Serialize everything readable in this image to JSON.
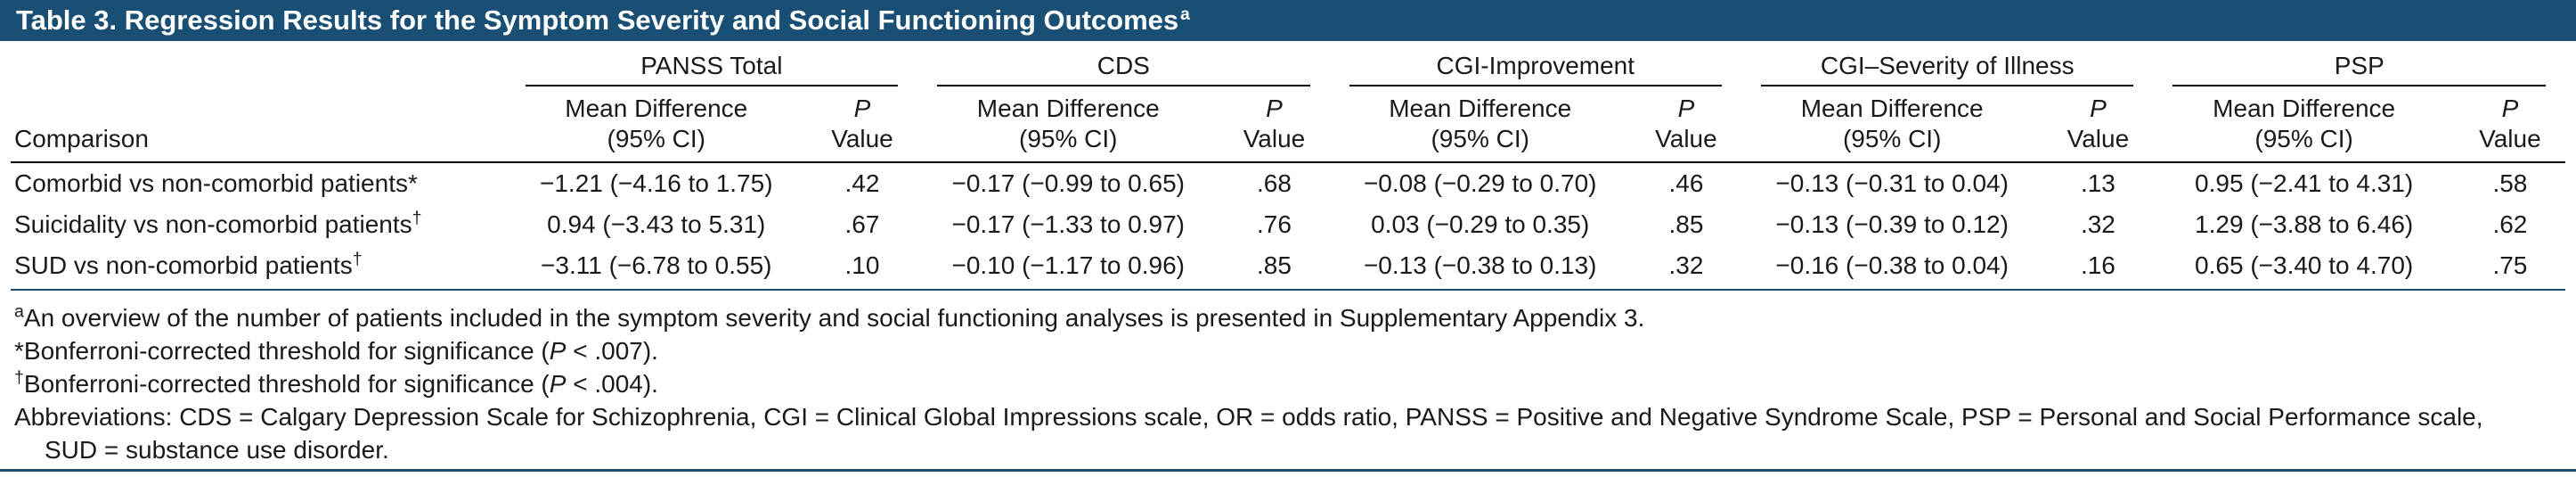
{
  "colors": {
    "navy_accent": "#1a4f75",
    "rule_black": "#000000"
  },
  "title": {
    "text": "Table 3. Regression Results for the Symptom Severity and Social Functioning Outcomes",
    "sup": "a"
  },
  "header": {
    "comparison_label": "Comparison",
    "groups": [
      {
        "name": "PANSS Total"
      },
      {
        "name": "CDS"
      },
      {
        "name": "CGI-Improvement"
      },
      {
        "name": "CGI–Severity of Illness"
      },
      {
        "name": "PSP"
      }
    ],
    "sub": {
      "md1": "Mean Difference",
      "md2": "(95% CI)",
      "p1": "P",
      "p2": "Value"
    }
  },
  "rows": [
    {
      "label": "Comorbid vs non-comorbid patients*",
      "mark": "",
      "cells": [
        {
          "md": "−1.21 (−4.16 to 1.75)",
          "p": ".42"
        },
        {
          "md": "−0.17 (−0.99 to 0.65)",
          "p": ".68"
        },
        {
          "md": "−0.08 (−0.29 to 0.70)",
          "p": ".46"
        },
        {
          "md": "−0.13 (−0.31 to 0.04)",
          "p": ".13"
        },
        {
          "md": "0.95 (−2.41 to 4.31)",
          "p": ".58"
        }
      ]
    },
    {
      "label": "Suicidality vs non-comorbid patients",
      "mark": "†",
      "cells": [
        {
          "md": "0.94 (−3.43 to 5.31)",
          "p": ".67"
        },
        {
          "md": "−0.17 (−1.33 to 0.97)",
          "p": ".76"
        },
        {
          "md": "0.03 (−0.29 to 0.35)",
          "p": ".85"
        },
        {
          "md": "−0.13 (−0.39 to 0.12)",
          "p": ".32"
        },
        {
          "md": "1.29 (−3.88 to 6.46)",
          "p": ".62"
        }
      ]
    },
    {
      "label": "SUD vs non-comorbid patients",
      "mark": "†",
      "cells": [
        {
          "md": "−3.11 (−6.78 to 0.55)",
          "p": ".10"
        },
        {
          "md": "−0.10 (−1.17 to 0.96)",
          "p": ".85"
        },
        {
          "md": "−0.13 (−0.38 to 0.13)",
          "p": ".32"
        },
        {
          "md": "−0.16 (−0.38 to 0.04)",
          "p": ".16"
        },
        {
          "md": "0.65 (−3.40 to 4.70)",
          "p": ".75"
        }
      ]
    }
  ],
  "footnotes": {
    "a": {
      "mark": "a",
      "text": "An overview of the number of patients included in the symptom severity and social functioning analyses is presented in Supplementary Appendix 3."
    },
    "star": {
      "mark": "*",
      "pre": "Bonferroni-corrected threshold for significance (",
      "p": "P",
      "post": " < .007)."
    },
    "dagger": {
      "mark": "†",
      "pre": "Bonferroni-corrected threshold for significance (",
      "p": "P",
      "post": " < .004)."
    },
    "abbrev": {
      "line1": "Abbreviations: CDS = Calgary Depression Scale for Schizophrenia, CGI = Clinical Global Impressions scale, OR = odds ratio, PANSS = Positive and Negative Syndrome Scale, PSP = Personal and Social Performance scale,",
      "line2": "SUD = substance use disorder."
    }
  }
}
